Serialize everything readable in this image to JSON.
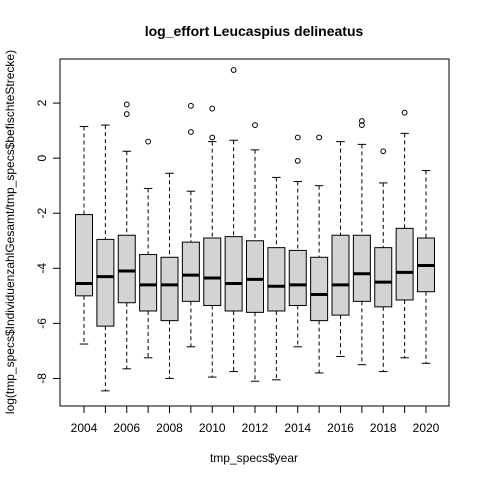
{
  "chart_data": {
    "type": "boxplot",
    "title": "log_effort Leucaspius delineatus",
    "xlabel": "tmp_specs$year",
    "ylabel": "log(tmp_specs$IndividuenzahlGesamt/tmp_specs$befischteStrecke)",
    "ylim": [
      -9.0,
      3.6
    ],
    "yticks": [
      -8,
      -6,
      -4,
      -2,
      0,
      2
    ],
    "x_tick_labels": [
      "2004",
      "2006",
      "2008",
      "2010",
      "2012",
      "2014",
      "2016",
      "2018",
      "2020"
    ],
    "grid": false,
    "fill_color": "#d3d3d3",
    "boxes": [
      {
        "year": "2004",
        "min": -6.75,
        "q1": -5.0,
        "median": -4.55,
        "q3": -2.05,
        "max": 1.15,
        "outliers": []
      },
      {
        "year": "2005",
        "min": -8.45,
        "q1": -6.1,
        "median": -4.3,
        "q3": -2.95,
        "max": 1.2,
        "outliers": []
      },
      {
        "year": "2006",
        "min": -7.65,
        "q1": -5.25,
        "median": -4.1,
        "q3": -2.8,
        "max": 0.25,
        "outliers": [
          1.95,
          1.6
        ]
      },
      {
        "year": "2007",
        "min": -7.25,
        "q1": -5.55,
        "median": -4.6,
        "q3": -3.5,
        "max": -1.1,
        "outliers": [
          0.6
        ]
      },
      {
        "year": "2008",
        "min": -8.0,
        "q1": -5.9,
        "median": -4.6,
        "q3": -3.6,
        "max": -0.55,
        "outliers": []
      },
      {
        "year": "2009",
        "min": -6.85,
        "q1": -5.2,
        "median": -4.25,
        "q3": -3.05,
        "max": -1.2,
        "outliers": [
          1.9,
          0.95
        ]
      },
      {
        "year": "2010",
        "min": -7.95,
        "q1": -5.35,
        "median": -4.35,
        "q3": -2.9,
        "max": 0.6,
        "outliers": [
          1.8,
          0.75
        ]
      },
      {
        "year": "2011",
        "min": -7.75,
        "q1": -5.55,
        "median": -4.55,
        "q3": -2.85,
        "max": 0.65,
        "outliers": [
          3.2
        ]
      },
      {
        "year": "2012",
        "min": -8.1,
        "q1": -5.6,
        "median": -4.4,
        "q3": -3.0,
        "max": 0.3,
        "outliers": [
          1.2
        ]
      },
      {
        "year": "2013",
        "min": -8.05,
        "q1": -5.55,
        "median": -4.65,
        "q3": -3.25,
        "max": -0.7,
        "outliers": []
      },
      {
        "year": "2014",
        "min": -6.85,
        "q1": -5.35,
        "median": -4.6,
        "q3": -3.35,
        "max": -0.85,
        "outliers": [
          0.75,
          -0.1
        ]
      },
      {
        "year": "2015",
        "min": -7.8,
        "q1": -5.9,
        "median": -4.95,
        "q3": -3.6,
        "max": -1.0,
        "outliers": [
          0.75
        ]
      },
      {
        "year": "2016",
        "min": -7.2,
        "q1": -5.7,
        "median": -4.6,
        "q3": -2.8,
        "max": 0.6,
        "outliers": []
      },
      {
        "year": "2017",
        "min": -7.5,
        "q1": -5.2,
        "median": -4.2,
        "q3": -2.8,
        "max": 0.5,
        "outliers": [
          1.35,
          1.2
        ]
      },
      {
        "year": "2018",
        "min": -7.75,
        "q1": -5.4,
        "median": -4.5,
        "q3": -3.25,
        "max": -0.9,
        "outliers": [
          0.25
        ]
      },
      {
        "year": "2019",
        "min": -7.25,
        "q1": -5.15,
        "median": -4.15,
        "q3": -2.55,
        "max": 0.9,
        "outliers": [
          1.65
        ]
      },
      {
        "year": "2020",
        "min": -7.45,
        "q1": -4.85,
        "median": -3.9,
        "q3": -2.9,
        "max": -0.45,
        "outliers": []
      }
    ]
  }
}
